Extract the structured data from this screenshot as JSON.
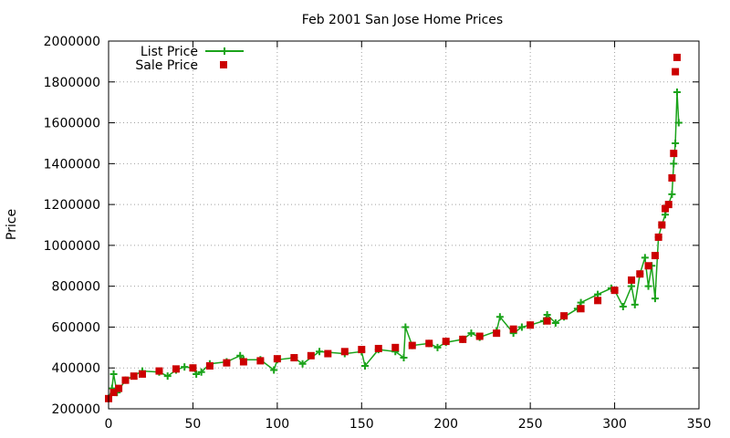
{
  "chart_data": {
    "type": "scatter",
    "title": "Feb 2001 San Jose Home Prices",
    "xlabel": "",
    "ylabel": "Price",
    "xlim": [
      0,
      350
    ],
    "ylim": [
      200000,
      2000000
    ],
    "x_ticks": [
      0,
      50,
      100,
      150,
      200,
      250,
      300,
      350
    ],
    "y_ticks": [
      200000,
      400000,
      600000,
      800000,
      1000000,
      1200000,
      1400000,
      1600000,
      1800000,
      2000000
    ],
    "grid": true,
    "legend_position": "top-left",
    "colors": {
      "list_price": "#1aa31a",
      "sale_price": "#cc0000"
    },
    "series": [
      {
        "name": "List Price",
        "style": "line-with-plus-markers",
        "points": [
          [
            0,
            250000
          ],
          [
            2,
            300000
          ],
          [
            3,
            370000
          ],
          [
            5,
            280000
          ],
          [
            10,
            340000
          ],
          [
            20,
            385000
          ],
          [
            30,
            380000
          ],
          [
            35,
            360000
          ],
          [
            40,
            390000
          ],
          [
            45,
            405000
          ],
          [
            50,
            400000
          ],
          [
            52,
            370000
          ],
          [
            55,
            380000
          ],
          [
            60,
            420000
          ],
          [
            70,
            430000
          ],
          [
            78,
            460000
          ],
          [
            80,
            440000
          ],
          [
            90,
            440000
          ],
          [
            98,
            390000
          ],
          [
            100,
            440000
          ],
          [
            110,
            450000
          ],
          [
            115,
            420000
          ],
          [
            125,
            480000
          ],
          [
            140,
            470000
          ],
          [
            150,
            480000
          ],
          [
            152,
            410000
          ],
          [
            160,
            490000
          ],
          [
            170,
            480000
          ],
          [
            175,
            450000
          ],
          [
            176,
            600000
          ],
          [
            180,
            510000
          ],
          [
            190,
            520000
          ],
          [
            195,
            500000
          ],
          [
            200,
            525000
          ],
          [
            210,
            540000
          ],
          [
            215,
            570000
          ],
          [
            220,
            550000
          ],
          [
            230,
            580000
          ],
          [
            232,
            650000
          ],
          [
            240,
            570000
          ],
          [
            245,
            600000
          ],
          [
            250,
            610000
          ],
          [
            258,
            630000
          ],
          [
            260,
            660000
          ],
          [
            265,
            620000
          ],
          [
            270,
            650000
          ],
          [
            278,
            690000
          ],
          [
            280,
            720000
          ],
          [
            290,
            760000
          ],
          [
            298,
            790000
          ],
          [
            300,
            780000
          ],
          [
            305,
            700000
          ],
          [
            310,
            800000
          ],
          [
            312,
            710000
          ],
          [
            315,
            860000
          ],
          [
            318,
            940000
          ],
          [
            320,
            800000
          ],
          [
            322,
            900000
          ],
          [
            324,
            740000
          ],
          [
            326,
            1040000
          ],
          [
            328,
            1100000
          ],
          [
            330,
            1150000
          ],
          [
            332,
            1200000
          ],
          [
            334,
            1250000
          ],
          [
            335,
            1400000
          ],
          [
            336,
            1500000
          ],
          [
            337,
            1750000
          ],
          [
            338,
            1600000
          ]
        ]
      },
      {
        "name": "Sale Price",
        "style": "square-markers",
        "points": [
          [
            0,
            250000
          ],
          [
            3,
            280000
          ],
          [
            6,
            300000
          ],
          [
            10,
            340000
          ],
          [
            15,
            360000
          ],
          [
            20,
            370000
          ],
          [
            30,
            385000
          ],
          [
            40,
            395000
          ],
          [
            50,
            400000
          ],
          [
            60,
            410000
          ],
          [
            70,
            425000
          ],
          [
            80,
            430000
          ],
          [
            90,
            435000
          ],
          [
            100,
            445000
          ],
          [
            110,
            450000
          ],
          [
            120,
            460000
          ],
          [
            130,
            470000
          ],
          [
            140,
            480000
          ],
          [
            150,
            490000
          ],
          [
            160,
            495000
          ],
          [
            170,
            500000
          ],
          [
            180,
            510000
          ],
          [
            190,
            520000
          ],
          [
            200,
            530000
          ],
          [
            210,
            540000
          ],
          [
            220,
            555000
          ],
          [
            230,
            570000
          ],
          [
            240,
            590000
          ],
          [
            250,
            610000
          ],
          [
            260,
            630000
          ],
          [
            270,
            655000
          ],
          [
            280,
            690000
          ],
          [
            290,
            730000
          ],
          [
            300,
            780000
          ],
          [
            310,
            830000
          ],
          [
            315,
            860000
          ],
          [
            320,
            900000
          ],
          [
            324,
            950000
          ],
          [
            326,
            1040000
          ],
          [
            328,
            1100000
          ],
          [
            330,
            1180000
          ],
          [
            332,
            1200000
          ],
          [
            334,
            1330000
          ],
          [
            335,
            1450000
          ],
          [
            336,
            1850000
          ],
          [
            337,
            1920000
          ]
        ]
      }
    ]
  }
}
